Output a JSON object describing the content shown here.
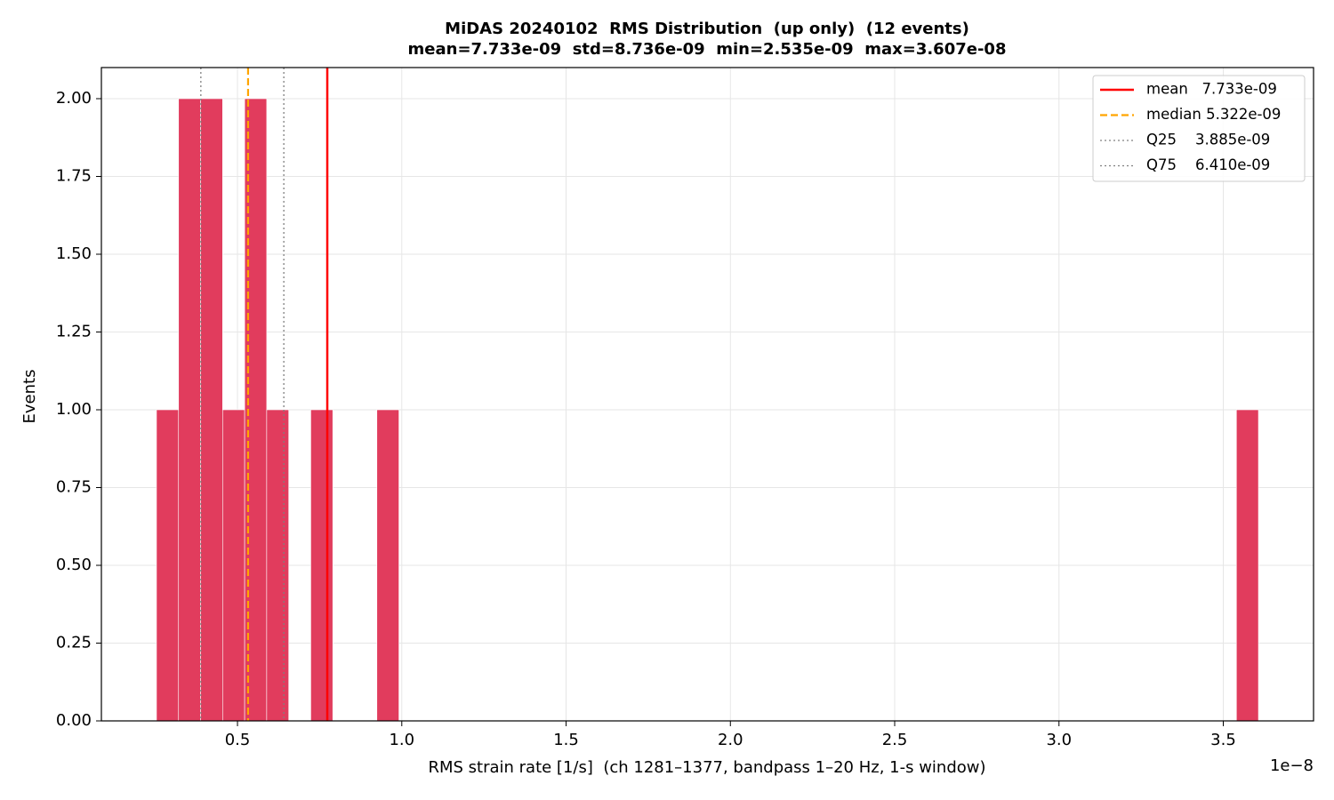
{
  "chart_data": {
    "type": "histogram",
    "title": "MiDAS 20240102  RMS Distribution  (up only)  (12 events)",
    "subtitle": "mean=7.733e-09  std=8.736e-09  min=2.535e-09  max=3.607e-08",
    "x_label": "RMS strain rate [1/s]  (ch 1281–1377, bandpass 1–20 Hz, 1-s window)",
    "y_label": "Events",
    "x_offset_label": "1e−8",
    "color": "#e0385a",
    "bins": [
      0.2535,
      0.3206,
      0.3876,
      0.4547,
      0.5218,
      0.5889,
      0.6559,
      0.723,
      0.7901,
      0.8571,
      0.9242,
      0.9913,
      1.0584,
      1.1254,
      1.1925,
      1.2596,
      1.3266,
      1.3937,
      1.4608,
      1.5279,
      1.5949,
      1.662,
      1.7291,
      1.7961,
      1.8632,
      1.9303,
      1.9974,
      2.0644,
      2.1315,
      2.1986,
      2.2656,
      2.3327,
      2.3998,
      2.4669,
      2.5339,
      2.601,
      2.6681,
      2.7351,
      2.8022,
      2.8693,
      2.9364,
      3.0034,
      3.0705,
      3.1376,
      3.2046,
      3.2717,
      3.3388,
      3.4059,
      3.4729,
      3.54,
      3.607
    ],
    "counts": [
      1,
      2,
      2,
      1,
      2,
      1,
      0,
      1,
      0,
      0,
      1,
      0,
      0,
      0,
      0,
      0,
      0,
      0,
      0,
      0,
      0,
      0,
      0,
      0,
      0,
      0,
      0,
      0,
      0,
      0,
      0,
      0,
      0,
      0,
      0,
      0,
      0,
      0,
      0,
      0,
      0,
      0,
      0,
      0,
      0,
      0,
      0,
      0,
      0,
      1
    ],
    "vlines": [
      {
        "name": "mean   7.733e-09",
        "value": 0.7733,
        "color": "#ff0000",
        "style": "solid"
      },
      {
        "name": "median 5.322e-09",
        "value": 0.5322,
        "color": "#ffa500",
        "style": "dashed"
      },
      {
        "name": "Q25    3.885e-09",
        "value": 0.3885,
        "color": "#808080",
        "style": "dotted"
      },
      {
        "name": "Q75    6.410e-09",
        "value": 0.641,
        "color": "#808080",
        "style": "dotted"
      }
    ],
    "xlim": [
      0.0858,
      3.7747
    ],
    "ylim": [
      0,
      2.1
    ],
    "xticks": [
      0.5,
      {
        "value": 1,
        "label": "1.0"
      },
      1.5,
      {
        "value": 2,
        "label": "2.0"
      },
      2.5,
      {
        "value": 3,
        "label": "3.0"
      },
      3.5
    ],
    "yticks": [
      {
        "value": 0,
        "label": "0.00"
      },
      {
        "value": 0.25,
        "label": "0.25"
      },
      {
        "value": 0.5,
        "label": "0.50"
      },
      {
        "value": 0.75,
        "label": "0.75"
      },
      {
        "value": 1,
        "label": "1.00"
      },
      {
        "value": 1.25,
        "label": "1.25"
      },
      {
        "value": 1.5,
        "label": "1.50"
      },
      {
        "value": 1.75,
        "label": "1.75"
      },
      {
        "value": 2,
        "label": "2.00"
      }
    ],
    "grid": true,
    "legend_position": "upper right"
  }
}
